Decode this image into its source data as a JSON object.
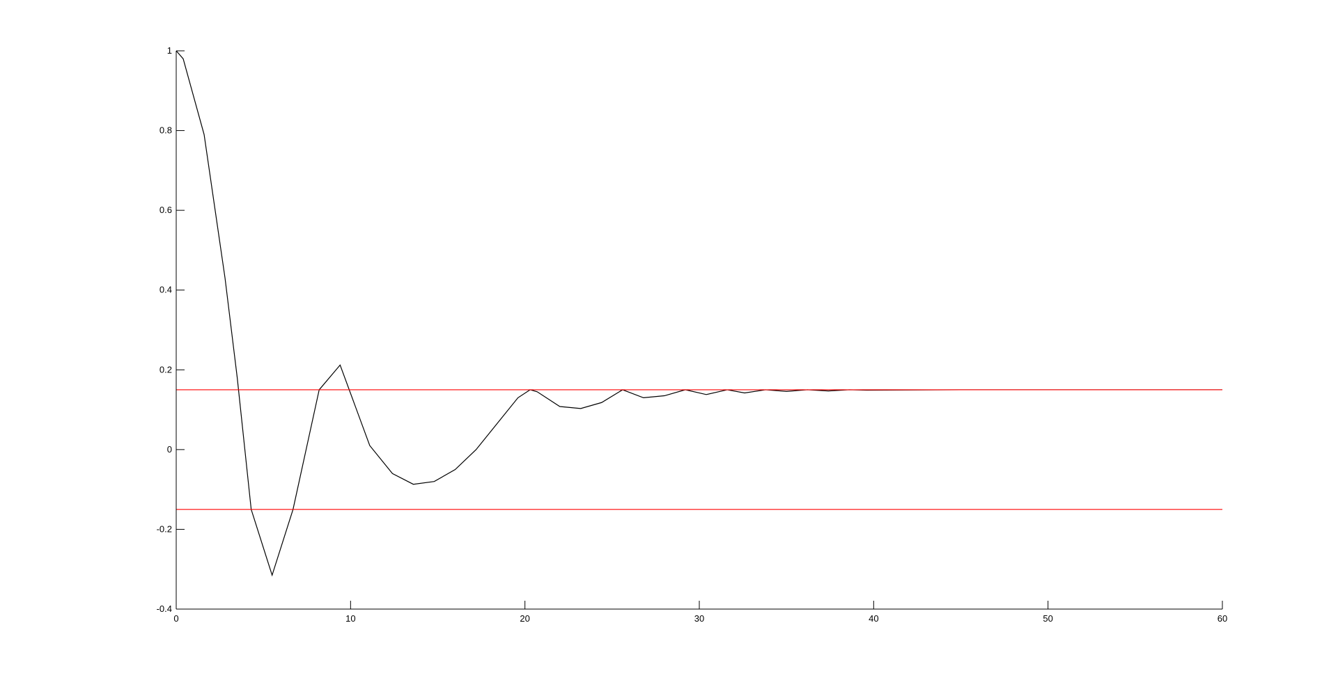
{
  "colors": {
    "background": "#ffffff",
    "axis": "#000000",
    "series": "#000000",
    "threshold": "#ff0000"
  },
  "chart_data": {
    "type": "line",
    "title": "",
    "xlabel": "",
    "ylabel": "",
    "xlim": [
      0,
      60
    ],
    "ylim": [
      -0.4,
      1
    ],
    "x_ticks": [
      0,
      10,
      20,
      30,
      40,
      50,
      60
    ],
    "x_tick_labels": [
      "0",
      "10",
      "20",
      "30",
      "40",
      "50",
      "60"
    ],
    "y_ticks": [
      -0.4,
      -0.2,
      0,
      0.2,
      0.4,
      0.6,
      0.8,
      1
    ],
    "y_tick_labels": [
      "-0.4",
      "-0.2",
      "0",
      "0.2",
      "0.4",
      "0.6",
      "0.8",
      "1"
    ],
    "grid": false,
    "legend": "none",
    "series": [
      {
        "color": "#000000",
        "x": [
          0,
          0.4,
          1.6,
          2.1,
          2.8,
          3.5,
          4.3,
          5.5,
          6.7,
          8.2,
          9.4,
          11.1,
          12.4,
          13.6,
          14.8,
          16.0,
          17.2,
          18.4,
          19.6,
          20.3,
          20.7,
          22.0,
          23.2,
          24.4,
          25.6,
          26.8,
          28.0,
          29.2,
          30.4,
          31.6,
          32.6,
          33.8,
          35.0,
          36.2,
          37.4,
          38.6,
          39.6,
          45,
          50,
          55,
          60
        ],
        "y": [
          1.0,
          0.98,
          0.79,
          0.64,
          0.43,
          0.18,
          -0.15,
          -0.315,
          -0.15,
          0.15,
          0.212,
          0.01,
          -0.06,
          -0.087,
          -0.08,
          -0.05,
          0.0,
          0.065,
          0.13,
          0.15,
          0.145,
          0.108,
          0.103,
          0.118,
          0.15,
          0.13,
          0.135,
          0.15,
          0.138,
          0.15,
          0.142,
          0.15,
          0.146,
          0.15,
          0.147,
          0.15,
          0.149,
          0.15,
          0.15,
          0.15,
          0.15
        ]
      },
      {
        "color": "#ff0000",
        "x": [
          0,
          60
        ],
        "y": [
          0.15,
          0.15
        ]
      },
      {
        "color": "#ff0000",
        "x": [
          0,
          60
        ],
        "y": [
          -0.15,
          -0.15
        ]
      }
    ]
  }
}
